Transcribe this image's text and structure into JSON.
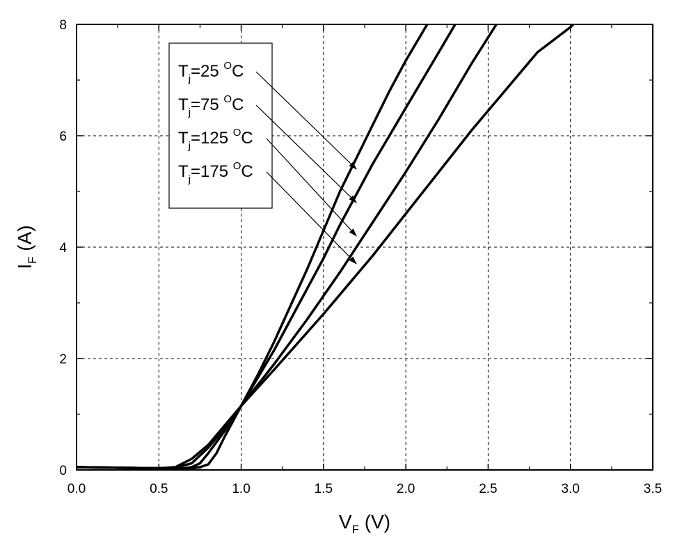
{
  "chart_data": {
    "type": "line",
    "xlabel": {
      "main": "V",
      "sub": "F",
      "suffix": " (V)"
    },
    "ylabel": {
      "main": "I",
      "sub": "F",
      "suffix": " (A)"
    },
    "xlim": [
      0.0,
      3.5
    ],
    "ylim": [
      0,
      8
    ],
    "x_ticks": [
      "0.0",
      "0.5",
      "1.0",
      "1.5",
      "2.0",
      "2.5",
      "3.0",
      "3.5"
    ],
    "y_ticks": [
      "0",
      "2",
      "4",
      "6",
      "8"
    ],
    "grid": true,
    "legend_placement": "upper-left",
    "series": [
      {
        "name": "Tj=25 °C",
        "label_main": "T",
        "label_sub": "j",
        "label_value": "=25 ",
        "label_sup": "O",
        "label_unit": "C",
        "x": [
          0.0,
          0.5,
          0.7,
          0.75,
          0.8,
          0.85,
          0.9,
          1.0,
          1.1,
          1.2,
          1.3,
          1.4,
          1.5,
          1.6,
          1.7,
          1.8,
          1.9,
          2.0,
          2.13
        ],
        "y": [
          0.05,
          0.03,
          0.03,
          0.05,
          0.1,
          0.3,
          0.6,
          1.15,
          1.7,
          2.3,
          2.95,
          3.6,
          4.3,
          5.0,
          5.6,
          6.2,
          6.8,
          7.35,
          8.0
        ]
      },
      {
        "name": "Tj=75 °C",
        "label_main": "T",
        "label_sub": "j",
        "label_value": "=75 ",
        "label_sup": "O",
        "label_unit": "C",
        "x": [
          0.0,
          0.5,
          0.65,
          0.7,
          0.75,
          0.8,
          0.9,
          1.0,
          1.1,
          1.2,
          1.3,
          1.4,
          1.5,
          1.6,
          1.7,
          1.8,
          1.9,
          2.0,
          2.1,
          2.2,
          2.3
        ],
        "y": [
          0.05,
          0.03,
          0.03,
          0.05,
          0.12,
          0.3,
          0.7,
          1.15,
          1.65,
          2.15,
          2.7,
          3.25,
          3.8,
          4.4,
          4.95,
          5.5,
          6.0,
          6.5,
          7.0,
          7.5,
          8.0
        ]
      },
      {
        "name": "Tj=125 °C",
        "label_main": "T",
        "label_sub": "j",
        "label_value": "=125 ",
        "label_sup": "O",
        "label_unit": "C",
        "x": [
          0.0,
          0.5,
          0.6,
          0.7,
          0.8,
          0.9,
          1.0,
          1.2,
          1.4,
          1.6,
          1.8,
          2.0,
          2.2,
          2.4,
          2.55
        ],
        "y": [
          0.05,
          0.03,
          0.04,
          0.12,
          0.4,
          0.75,
          1.15,
          1.9,
          2.7,
          3.55,
          4.45,
          5.35,
          6.3,
          7.3,
          8.0
        ]
      },
      {
        "name": "Tj=175 °C",
        "label_main": "T",
        "label_sub": "j",
        "label_value": "=175 ",
        "label_sup": "O",
        "label_unit": "C",
        "x": [
          0.0,
          0.5,
          0.6,
          0.7,
          0.8,
          0.9,
          1.0,
          1.2,
          1.5,
          1.8,
          2.0,
          2.2,
          2.4,
          2.6,
          2.8,
          3.0,
          3.1
        ],
        "y": [
          0.05,
          0.03,
          0.05,
          0.2,
          0.45,
          0.8,
          1.15,
          1.8,
          2.8,
          3.85,
          4.6,
          5.35,
          6.1,
          6.8,
          7.5,
          7.95,
          8.25
        ]
      }
    ],
    "arrows_to": [
      {
        "x": 1.7,
        "y": 5.4
      },
      {
        "x": 1.7,
        "y": 4.8
      },
      {
        "x": 1.7,
        "y": 4.2
      },
      {
        "x": 1.7,
        "y": 3.7
      }
    ]
  }
}
